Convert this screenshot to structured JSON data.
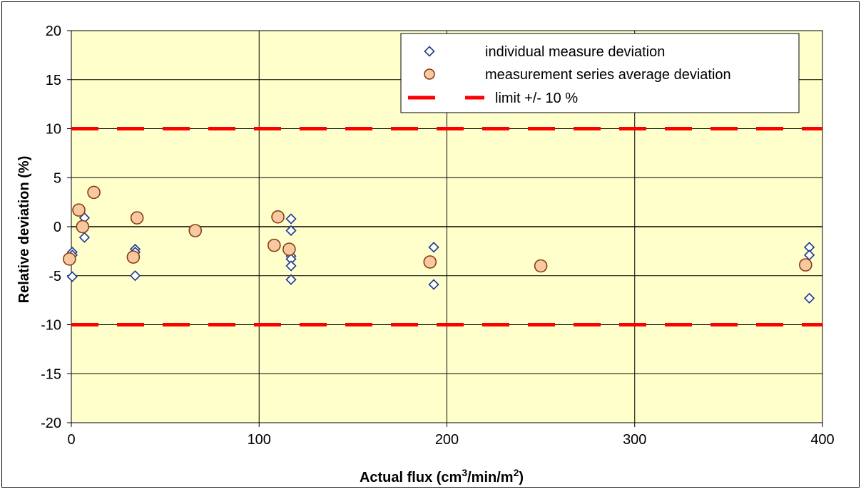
{
  "chart_data": {
    "type": "scatter",
    "title": "",
    "xlabel": {
      "main": "Actual flux (cm",
      "sup1": "3",
      "mid": "/min/m",
      "sup2": "2",
      "end": ")"
    },
    "ylabel": "Relative deviation (%)",
    "xlim": [
      0,
      400
    ],
    "ylim": [
      -20,
      20
    ],
    "x_ticks": [
      0,
      100,
      200,
      300,
      400
    ],
    "y_ticks": [
      20,
      15,
      10,
      5,
      0,
      -5,
      -10,
      -15,
      -20
    ],
    "grid": true,
    "plot_background": "#FFFFCC",
    "legend_position": "top-right",
    "series": [
      {
        "name": "individual measure deviation",
        "marker": "diamond",
        "color": "#1F3A8A",
        "fill": "#FFFFFF",
        "points": [
          [
            0.5,
            -2.6
          ],
          [
            0.5,
            -2.9
          ],
          [
            0.5,
            -5.1
          ],
          [
            7,
            0.9
          ],
          [
            7,
            -1.1
          ],
          [
            34,
            -2.3
          ],
          [
            34,
            -2.6
          ],
          [
            34,
            -5.0
          ],
          [
            117,
            0.8
          ],
          [
            117,
            -0.4
          ],
          [
            117,
            -3.0
          ],
          [
            117,
            -3.3
          ],
          [
            117,
            -4.0
          ],
          [
            117,
            -5.4
          ],
          [
            193,
            -2.1
          ],
          [
            193,
            -5.9
          ],
          [
            393,
            -2.1
          ],
          [
            393,
            -2.9
          ],
          [
            393,
            -7.3
          ]
        ]
      },
      {
        "name": "measurement series average deviation",
        "marker": "circle",
        "color": "#8B3A10",
        "fill": "#F7C9A0",
        "points": [
          [
            -1,
            -3.3
          ],
          [
            4,
            1.7
          ],
          [
            6,
            0.0
          ],
          [
            12,
            3.5
          ],
          [
            33,
            -3.1
          ],
          [
            35,
            0.9
          ],
          [
            66,
            -0.4
          ],
          [
            108,
            -1.9
          ],
          [
            110,
            1.0
          ],
          [
            116,
            -2.3
          ],
          [
            191,
            -3.6
          ],
          [
            250,
            -4.0
          ],
          [
            391,
            -3.9
          ]
        ]
      }
    ],
    "reference_lines": [
      {
        "name": "limit +/- 10 %",
        "values": [
          10,
          -10
        ],
        "color": "#FF0000",
        "style": "dashed"
      }
    ]
  }
}
